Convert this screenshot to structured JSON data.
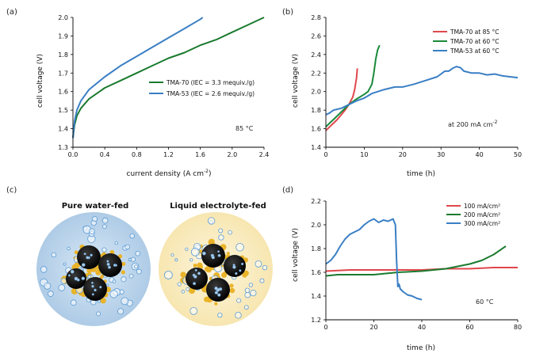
{
  "chart_data": [
    {
      "id": "a",
      "panel_label": "(a)",
      "type": "line",
      "xlabel": "current density (A cm",
      "xlabel_sup": "-2",
      "xlabel_end": ")",
      "ylabel": "cell voltage (V)",
      "xlim": [
        0,
        2.4
      ],
      "ylim": [
        1.3,
        2.0
      ],
      "xticks": [
        "0.0",
        "0.4",
        "0.8",
        "1.2",
        "1.6",
        "2.0",
        "2.4"
      ],
      "yticks": [
        "1.3",
        "1.4",
        "1.5",
        "1.6",
        "1.7",
        "1.8",
        "1.9",
        "2.0"
      ],
      "annotation": "85 °C",
      "series": [
        {
          "name": "TMA-70 (IEC = 3.3 mequiv./g)",
          "color": "#1a7a2e",
          "x": [
            0.0,
            0.02,
            0.05,
            0.1,
            0.2,
            0.4,
            0.6,
            0.8,
            1.0,
            1.2,
            1.4,
            1.6,
            1.8,
            2.0,
            2.2,
            2.4
          ],
          "y": [
            1.35,
            1.42,
            1.47,
            1.51,
            1.56,
            1.62,
            1.66,
            1.7,
            1.74,
            1.78,
            1.81,
            1.85,
            1.88,
            1.92,
            1.96,
            2.0
          ]
        },
        {
          "name": "TMA-53 (IEC = 2.6 mequiv./g)",
          "color": "#3a7fc4",
          "x": [
            0.0,
            0.02,
            0.05,
            0.1,
            0.2,
            0.4,
            0.6,
            0.8,
            1.0,
            1.2,
            1.4,
            1.6,
            1.63
          ],
          "y": [
            1.35,
            1.44,
            1.5,
            1.55,
            1.61,
            1.68,
            1.74,
            1.79,
            1.84,
            1.89,
            1.94,
            1.99,
            2.0
          ]
        }
      ]
    },
    {
      "id": "b",
      "panel_label": "(b)",
      "type": "line",
      "xlabel": "time (h)",
      "ylabel": "cell voltage (V)",
      "xlim": [
        0,
        50
      ],
      "ylim": [
        1.4,
        2.8
      ],
      "xticks": [
        "0",
        "10",
        "20",
        "30",
        "40",
        "50"
      ],
      "yticks": [
        "1.4",
        "1.6",
        "1.8",
        "2.0",
        "2.2",
        "2.4",
        "2.6",
        "2.8"
      ],
      "annotation": "at 200 mA cm",
      "annotation_sup": "-2",
      "series": [
        {
          "name": "TMA-70 at 85 °C",
          "color": "#e0474c",
          "x": [
            0,
            1,
            2,
            3,
            4,
            5,
            6,
            7,
            7.5,
            8,
            8.2
          ],
          "y": [
            1.58,
            1.62,
            1.66,
            1.7,
            1.75,
            1.8,
            1.86,
            1.94,
            2.02,
            2.15,
            2.25
          ]
        },
        {
          "name": "TMA-70 at 60 °C",
          "color": "#1a8a3a",
          "x": [
            0,
            1,
            2,
            4,
            6,
            8,
            10,
            11,
            12,
            12.5,
            13,
            13.5,
            14
          ],
          "y": [
            1.62,
            1.66,
            1.7,
            1.78,
            1.86,
            1.92,
            1.97,
            2.0,
            2.08,
            2.2,
            2.35,
            2.45,
            2.5
          ]
        },
        {
          "name": "TMA-53 at 60 °C",
          "color": "#3a7fc4",
          "x": [
            0,
            1,
            2,
            4,
            6,
            8,
            10,
            12,
            15,
            18,
            20,
            23,
            26,
            29,
            31,
            32,
            33,
            34,
            35,
            36,
            38,
            40,
            42,
            44,
            46,
            48,
            50
          ],
          "y": [
            1.75,
            1.77,
            1.8,
            1.82,
            1.86,
            1.9,
            1.93,
            1.98,
            2.02,
            2.05,
            2.05,
            2.08,
            2.12,
            2.16,
            2.22,
            2.22,
            2.25,
            2.27,
            2.26,
            2.22,
            2.2,
            2.2,
            2.18,
            2.19,
            2.17,
            2.16,
            2.15
          ]
        }
      ]
    },
    {
      "id": "d",
      "panel_label": "(d)",
      "type": "line",
      "xlabel": "time (h)",
      "ylabel": "cell voltage (V)",
      "xlim": [
        0,
        80
      ],
      "ylim": [
        1.2,
        2.2
      ],
      "xticks": [
        "0",
        "20",
        "40",
        "60",
        "80"
      ],
      "yticks": [
        "1.2",
        "1.4",
        "1.6",
        "1.8",
        "2.0",
        "2.2"
      ],
      "annotation": "60 °C",
      "series": [
        {
          "name": "100 mA/cm²",
          "color": "#e0474c",
          "x": [
            0,
            10,
            20,
            30,
            40,
            50,
            60,
            70,
            80
          ],
          "y": [
            1.61,
            1.62,
            1.62,
            1.62,
            1.62,
            1.63,
            1.63,
            1.64,
            1.64
          ]
        },
        {
          "name": "200 mA/cm²",
          "color": "#1a7a2e",
          "x": [
            0,
            5,
            10,
            20,
            30,
            40,
            50,
            60,
            65,
            70,
            75
          ],
          "y": [
            1.57,
            1.58,
            1.58,
            1.58,
            1.6,
            1.61,
            1.63,
            1.67,
            1.7,
            1.75,
            1.82
          ]
        },
        {
          "name": "300 mA/cm²",
          "color": "#3a7fc4",
          "x": [
            0,
            2,
            4,
            6,
            8,
            10,
            12,
            14,
            16,
            18,
            20,
            22,
            24,
            26,
            28,
            29,
            29.5,
            30,
            30.5,
            31,
            32,
            34,
            36,
            38,
            40
          ],
          "y": [
            1.67,
            1.7,
            1.75,
            1.82,
            1.88,
            1.92,
            1.94,
            1.96,
            2.0,
            2.03,
            2.05,
            2.02,
            2.04,
            2.03,
            2.05,
            2.0,
            1.7,
            1.48,
            1.5,
            1.46,
            1.44,
            1.41,
            1.4,
            1.38,
            1.37
          ]
        }
      ]
    }
  ],
  "schematic": {
    "panel_label": "(c)",
    "left_title": "Pure water-fed",
    "right_title": "Liquid electrolyte-fed"
  }
}
